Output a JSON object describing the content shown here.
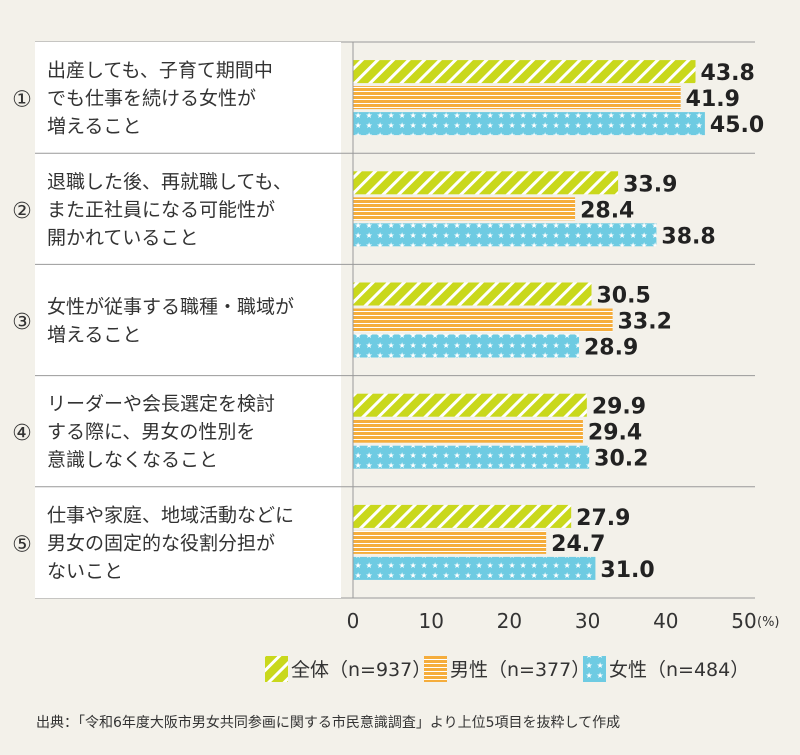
{
  "chart_data": {
    "type": "bar",
    "orientation": "horizontal",
    "unit_label": "(%)",
    "xlim": [
      0,
      50
    ],
    "xticks": [
      0,
      10,
      20,
      30,
      40,
      50
    ],
    "categories": [
      {
        "num": "①",
        "lines": [
          "出産しても、子育て期間中",
          "でも仕事を続ける女性が",
          "増えること"
        ]
      },
      {
        "num": "②",
        "lines": [
          "退職した後、再就職しても、",
          "また正社員になる可能性が",
          "開かれていること"
        ]
      },
      {
        "num": "③",
        "lines": [
          "女性が従事する職種・職域が",
          "増えること"
        ]
      },
      {
        "num": "④",
        "lines": [
          "リーダーや会長選定を検討",
          "する際に、男女の性別を",
          "意識しなくなること"
        ]
      },
      {
        "num": "⑤",
        "lines": [
          "仕事や家庭、地域活動などに",
          "男女の固定的な役割分担が",
          "ないこと"
        ]
      }
    ],
    "series": [
      {
        "name": "全体（n=937）",
        "values": [
          43.8,
          33.9,
          30.5,
          29.9,
          27.9
        ],
        "color": "#c9d81c",
        "pattern": "diagonal"
      },
      {
        "name": "男性（n=377）",
        "values": [
          41.9,
          28.4,
          33.2,
          29.4,
          24.7
        ],
        "color": "#f5ad3c",
        "pattern": "horizontal"
      },
      {
        "name": "女性（n=484）",
        "values": [
          45.0,
          38.8,
          28.9,
          30.2,
          31.0
        ],
        "color": "#6ecbe2",
        "pattern": "stars"
      }
    ],
    "legend_position": "bottom",
    "source": "出典：「令和6年度大阪市男女共同参画に関する市民意識調査」より上位5項目を抜粋して作成"
  }
}
